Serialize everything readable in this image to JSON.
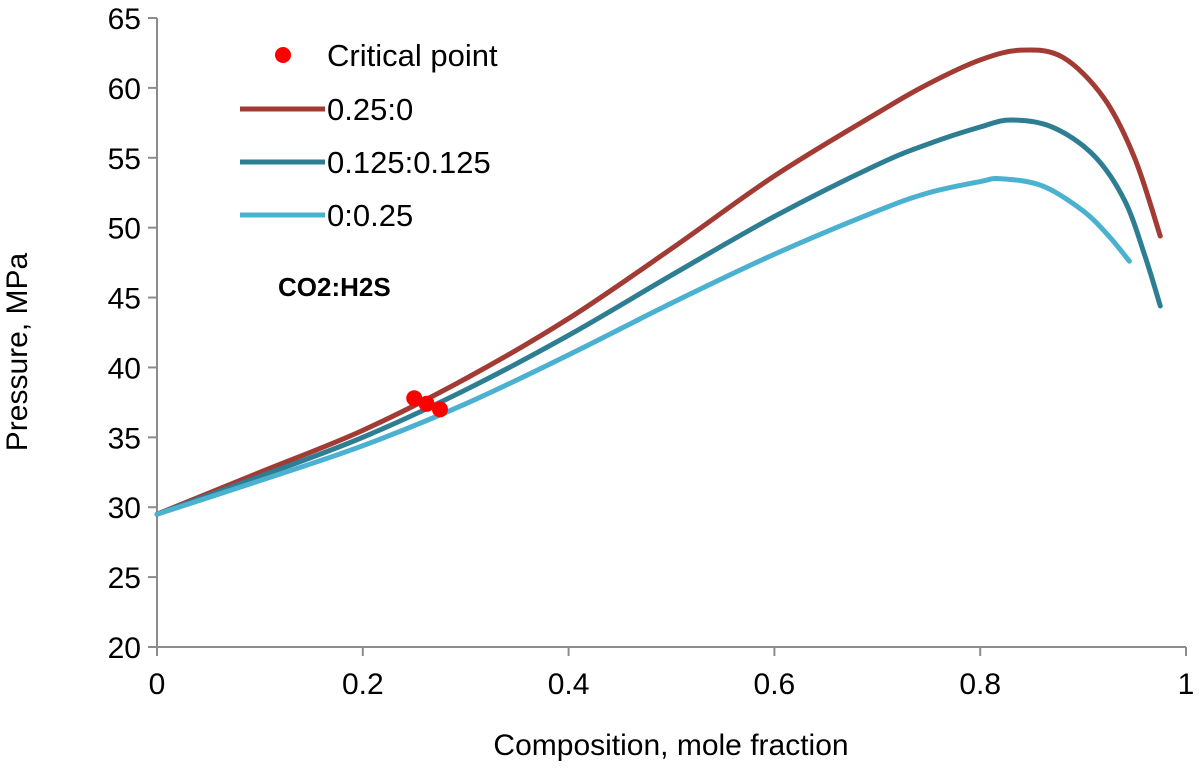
{
  "chart_data": {
    "type": "line",
    "xlabel": "Composition, mole fraction",
    "ylabel": "Pressure,  MPa",
    "xlim": [
      0,
      1
    ],
    "ylim": [
      20,
      65
    ],
    "x_ticks": [
      0,
      0.2,
      0.4,
      0.6,
      0.8,
      1
    ],
    "x_tick_labels": [
      "0",
      "0.2",
      "0.4",
      "0.6",
      "0.8",
      "1"
    ],
    "y_ticks": [
      20,
      25,
      30,
      35,
      40,
      45,
      50,
      55,
      60,
      65
    ],
    "y_tick_labels": [
      "20",
      "25",
      "30",
      "35",
      "40",
      "45",
      "50",
      "55",
      "60",
      "65"
    ],
    "grid": false,
    "legend_position": "top-left",
    "annotation": "CO2:H2S",
    "series": [
      {
        "name": "0.25:0",
        "color": "#a33b35",
        "x": [
          0,
          0.1,
          0.2,
          0.3,
          0.4,
          0.5,
          0.6,
          0.7,
          0.75,
          0.8,
          0.84,
          0.88,
          0.92,
          0.95,
          0.975
        ],
        "y": [
          29.5,
          32.5,
          35.5,
          39.2,
          43.5,
          48.5,
          53.7,
          58.2,
          60.3,
          62.0,
          62.7,
          62.2,
          59.3,
          55.0,
          49.4
        ]
      },
      {
        "name": "0.125:0.125",
        "color": "#2e7e93",
        "x": [
          0,
          0.1,
          0.2,
          0.3,
          0.4,
          0.5,
          0.6,
          0.7,
          0.75,
          0.8,
          0.83,
          0.87,
          0.91,
          0.94,
          0.96,
          0.975
        ],
        "y": [
          29.5,
          32.2,
          35.0,
          38.4,
          42.3,
          46.6,
          50.8,
          54.5,
          56.0,
          57.2,
          57.7,
          57.2,
          55.2,
          52.0,
          48.0,
          44.4
        ]
      },
      {
        "name": "0:0.25",
        "color": "#4bb1d0",
        "x": [
          0,
          0.1,
          0.2,
          0.3,
          0.4,
          0.5,
          0.6,
          0.7,
          0.75,
          0.8,
          0.82,
          0.86,
          0.9,
          0.925,
          0.945
        ],
        "y": [
          29.5,
          31.9,
          34.4,
          37.4,
          40.9,
          44.6,
          48.1,
          51.2,
          52.5,
          53.3,
          53.5,
          53.0,
          51.2,
          49.4,
          47.6
        ]
      }
    ],
    "critical_points": {
      "name": "Critical point",
      "color": "#ff0000",
      "points": [
        {
          "x": 0.25,
          "y": 37.8
        },
        {
          "x": 0.262,
          "y": 37.4
        },
        {
          "x": 0.275,
          "y": 37.0
        }
      ]
    }
  }
}
